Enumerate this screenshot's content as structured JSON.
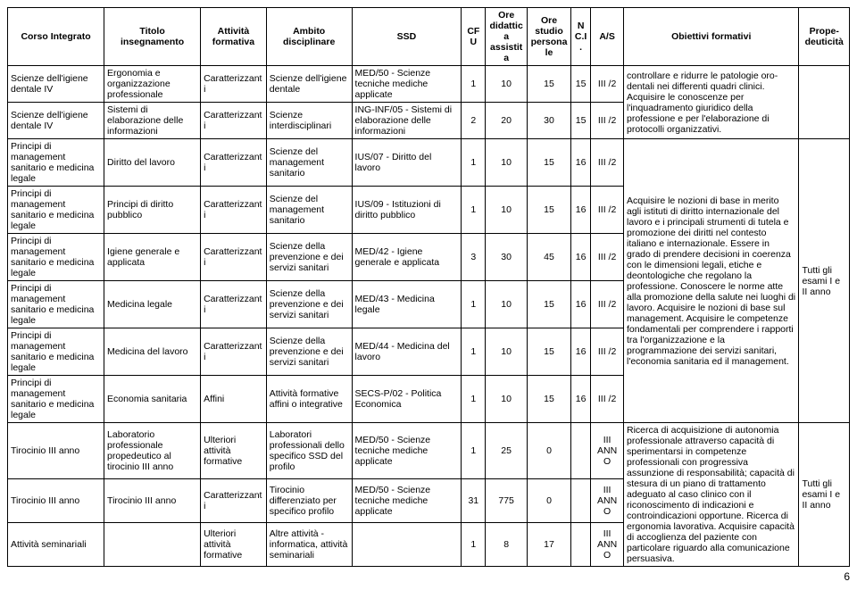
{
  "headers": {
    "corso": "Corso Integrato",
    "titolo": "Titolo insegnamento",
    "attivita": "Attività formativa",
    "ambito": "Ambito disciplinare",
    "ssd": "SSD",
    "cfu": "CFU",
    "ore_did": "Ore didattica assistita",
    "ore_stu": "Ore studio personale",
    "nci": "N C.I.",
    "as": "A/S",
    "obiettivi": "Obiettivi formativi",
    "prop": "Prope-deuticità"
  },
  "rows": [
    {
      "corso": "Scienze dell'igiene dentale IV",
      "titolo": "Ergonomia e organizzazione professionale",
      "attivita": "Caratterizzanti",
      "ambito": "Scienze dell'igiene dentale",
      "ssd": "MED/50 - Scienze tecniche mediche applicate",
      "cfu": "1",
      "did": "10",
      "stu": "15",
      "nci": "15",
      "as": "III /2"
    },
    {
      "corso": "Scienze dell'igiene dentale IV",
      "titolo": "Sistemi di elaborazione delle informazioni",
      "attivita": "Caratterizzanti",
      "ambito": "Scienze interdisciplinari",
      "ssd": "ING-INF/05 - Sistemi di elaborazione delle informazioni",
      "cfu": "2",
      "did": "20",
      "stu": "30",
      "nci": "15",
      "as": "III /2"
    },
    {
      "corso": "Principi di management sanitario e medicina legale",
      "titolo": "Diritto del lavoro",
      "attivita": "Caratterizzanti",
      "ambito": "Scienze del management sanitario",
      "ssd": "IUS/07 - Diritto del lavoro",
      "cfu": "1",
      "did": "10",
      "stu": "15",
      "nci": "16",
      "as": "III /2"
    },
    {
      "corso": "Principi di management sanitario e medicina legale",
      "titolo": "Principi di diritto pubblico",
      "attivita": "Caratterizzanti",
      "ambito": "Scienze del management sanitario",
      "ssd": "IUS/09 - Istituzioni di diritto pubblico",
      "cfu": "1",
      "did": "10",
      "stu": "15",
      "nci": "16",
      "as": "III /2"
    },
    {
      "corso": "Principi di management sanitario e medicina legale",
      "titolo": "Igiene generale e applicata",
      "attivita": "Caratterizzanti",
      "ambito": "Scienze della prevenzione e dei servizi sanitari",
      "ssd": "MED/42 - Igiene generale e applicata",
      "cfu": "3",
      "did": "30",
      "stu": "45",
      "nci": "16",
      "as": "III /2"
    },
    {
      "corso": "Principi di management sanitario e medicina legale",
      "titolo": "Medicina legale",
      "attivita": "Caratterizzanti",
      "ambito": "Scienze della prevenzione e dei servizi sanitari",
      "ssd": "MED/43 - Medicina legale",
      "cfu": "1",
      "did": "10",
      "stu": "15",
      "nci": "16",
      "as": "III /2"
    },
    {
      "corso": "Principi di management sanitario e medicina legale",
      "titolo": "Medicina del lavoro",
      "attivita": "Caratterizzanti",
      "ambito": "Scienze della prevenzione e dei servizi sanitari",
      "ssd": "MED/44 - Medicina del lavoro",
      "cfu": "1",
      "did": "10",
      "stu": "15",
      "nci": "16",
      "as": "III /2"
    },
    {
      "corso": "Principi di management sanitario e medicina legale",
      "titolo": "Economia sanitaria",
      "attivita": "Affini",
      "ambito": "Attività formative affini o integrative",
      "ssd": "SECS-P/02 - Politica Economica",
      "cfu": "1",
      "did": "10",
      "stu": "15",
      "nci": "16",
      "as": "III /2"
    },
    {
      "corso": "Tirocinio III anno",
      "titolo": "Laboratorio professionale propedeutico al tirocinio III anno",
      "attivita": "Ulteriori attività formative",
      "ambito": "Laboratori professionali dello specifico SSD del profilo",
      "ssd": "MED/50 - Scienze tecniche mediche applicate",
      "cfu": "1",
      "did": "25",
      "stu": "0",
      "nci": "",
      "as": "III ANNO"
    },
    {
      "corso": "Tirocinio III anno",
      "titolo": "Tirocinio III anno",
      "attivita": "Caratterizzanti",
      "ambito": "Tirocinio differenziato per specifico profilo",
      "ssd": "MED/50 - Scienze tecniche mediche applicate",
      "cfu": "31",
      "did": "775",
      "stu": "0",
      "nci": "",
      "as": "III ANNO"
    },
    {
      "corso": "Attività seminariali",
      "titolo": "",
      "attivita": "Ulteriori attività formative",
      "ambito": "Altre attività - informatica, attività seminariali",
      "ssd": "",
      "cfu": "1",
      "did": "8",
      "stu": "17",
      "nci": "",
      "as": "III ANNO"
    }
  ],
  "objectives": {
    "g1": "controllare e ridurre le patologie oro-dentali nei differenti quadri clinici. Acquisire le conoscenze per l'inquadramento giuridico della professione e per l'elaborazione di protocolli organizzativi.",
    "g2": "Acquisire le nozioni di base in merito agli istituti di diritto internazionale del lavoro e i principali strumenti di tutela e promozione dei diritti nel contesto italiano e internazionale. Essere in grado di prendere decisioni in coerenza con le dimensioni legali, etiche e deontologiche che regolano la professione. Conoscere le norme atte alla promozione della salute nei luoghi di lavoro. Acquisire le nozioni di base sul management. Acquisire le competenze fondamentali per comprendere i rapporti tra l'organizzazione e la programmazione dei servizi sanitari, l'economia sanitaria ed il management.",
    "g3": "Ricerca di acquisizione di autonomia professionale attraverso capacità di sperimentarsi in competenze professionali con progressiva assunzione di responsabilità; capacità di stesura di un piano di trattamento adeguato al caso clinico con il riconoscimento di indicazioni e controindicazioni opportune. Ricerca di ergonomia lavorativa. Acquisire capacità di accoglienza del paziente con particolare riguardo alla comunicazione persuasiva."
  },
  "prop": {
    "g2": "Tutti gli esami I e II anno",
    "g3": "Tutti gli esami I e II anno"
  },
  "pagenum": "6"
}
